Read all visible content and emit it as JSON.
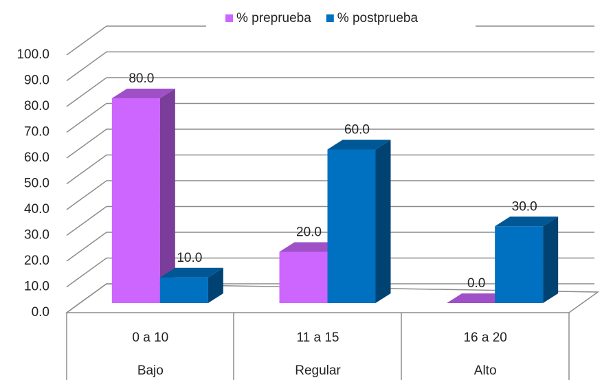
{
  "chart_data": {
    "type": "bar3d",
    "categories": [
      [
        "0 a 10",
        "Bajo"
      ],
      [
        "11 a 15",
        "Regular"
      ],
      [
        "16 a 20",
        "Alto"
      ]
    ],
    "series": [
      {
        "name": "% preprueba",
        "color": "#cc66ff",
        "values": [
          80,
          20,
          0
        ],
        "value_labels": [
          "80.0",
          "20.0",
          "0.0"
        ]
      },
      {
        "name": "% postprueba",
        "color": "#0070c0",
        "values": [
          10,
          60,
          30
        ],
        "value_labels": [
          "10.0",
          "60.0",
          "30.0"
        ]
      }
    ],
    "ylim": [
      0,
      100
    ],
    "yticks": [
      {
        "value": 0,
        "label": "0.0"
      },
      {
        "value": 10,
        "label": "10.0"
      },
      {
        "value": 20,
        "label": "20.0"
      },
      {
        "value": 30,
        "label": "30.0"
      },
      {
        "value": 40,
        "label": "40.0"
      },
      {
        "value": 50,
        "label": "50.0"
      },
      {
        "value": 60,
        "label": "60.0"
      },
      {
        "value": 70,
        "label": "70.0"
      },
      {
        "value": 80,
        "label": "80.0"
      },
      {
        "value": 90,
        "label": "90.0"
      },
      {
        "value": 100,
        "label": "100.0"
      }
    ],
    "grid": true,
    "legend": "top"
  }
}
